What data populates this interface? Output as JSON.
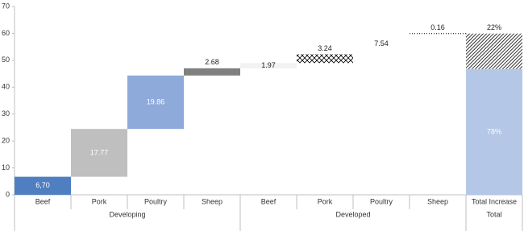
{
  "chart_data": {
    "type": "waterfall",
    "ylim": [
      0,
      70
    ],
    "yticks": [
      0,
      10,
      20,
      30,
      40,
      50,
      60,
      70
    ],
    "groups": [
      {
        "name": "Developing",
        "categories": [
          "Beef",
          "Pork",
          "Poultry",
          "Sheep"
        ],
        "values": [
          6.7,
          17.77,
          19.86,
          2.68
        ],
        "value_labels": [
          "6,70",
          "17.77",
          "19.86",
          "2.68"
        ],
        "colors": [
          "#4f7fc0",
          "#bfbfbf",
          "#8eaadb",
          "#808080"
        ],
        "fills": [
          "solid",
          "solid",
          "solid",
          "solid"
        ],
        "label_positions": [
          "inside",
          "inside",
          "inside",
          "above"
        ]
      },
      {
        "name": "Developed",
        "categories": [
          "Beef",
          "Pork",
          "Poultry",
          "Sheep"
        ],
        "values": [
          1.97,
          3.24,
          7.54,
          0.16
        ],
        "value_labels": [
          "1.97",
          "3.24",
          "7.54",
          "0.16"
        ],
        "colors": [
          "#f2f2f2",
          "#000000",
          "#ffffff",
          "#000000"
        ],
        "fills": [
          "solid",
          "crosshatch",
          "solid",
          "dotted"
        ],
        "label_positions": [
          "inside",
          "above",
          "inside",
          "above"
        ]
      },
      {
        "name": "Total",
        "categories": [
          "Total Increase"
        ],
        "shares": [
          78,
          22
        ],
        "share_labels": [
          "78%",
          "22%"
        ],
        "colors": [
          "#b4c7e7",
          "#000000"
        ],
        "fills": [
          "solid",
          "hatch"
        ],
        "label_positions": [
          "inside",
          "above"
        ]
      }
    ]
  }
}
